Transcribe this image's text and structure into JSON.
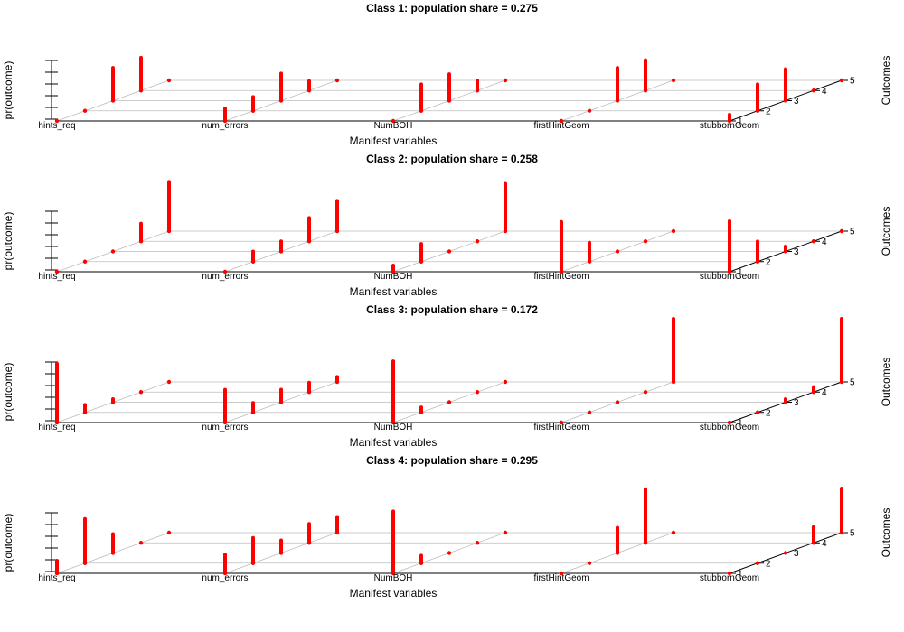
{
  "chart_data": [
    {
      "type": "3d-bar",
      "title": "Class 1: population share = 0.275",
      "xlabel": "Manifest variables",
      "ylabel": "pr(outcome)",
      "zlabel": "Outcomes",
      "variables": [
        "hints_req",
        "num_errors",
        "NumBOH",
        "firstHintGeom",
        "stubbornGeom"
      ],
      "outcomes": [
        "1",
        "2",
        "3",
        "4",
        "5"
      ],
      "ylim": [
        0,
        1
      ],
      "bar_color": "#ff0000",
      "values": [
        [
          0.0,
          0.0,
          0.52,
          0.52,
          0.0
        ],
        [
          0.2,
          0.22,
          0.43,
          0.15,
          0.0
        ],
        [
          0.0,
          0.42,
          0.42,
          0.16,
          0.0
        ],
        [
          0.0,
          0.0,
          0.52,
          0.48,
          0.0
        ],
        [
          0.1,
          0.42,
          0.5,
          0.0,
          0.0
        ]
      ]
    },
    {
      "type": "3d-bar",
      "title": "Class 2: population share = 0.258",
      "xlabel": "Manifest variables",
      "ylabel": "pr(outcome)",
      "zlabel": "Outcomes",
      "variables": [
        "hints_req",
        "num_errors",
        "NumBOH",
        "firstHintGeom",
        "stubbornGeom"
      ],
      "outcomes": [
        "1",
        "2",
        "3",
        "4",
        "5"
      ],
      "ylim": [
        0,
        1
      ],
      "bar_color": "#ff0000",
      "values": [
        [
          0.0,
          0.0,
          0.0,
          0.28,
          0.78
        ],
        [
          0.0,
          0.16,
          0.16,
          0.37,
          0.48
        ],
        [
          0.1,
          0.28,
          0.0,
          0.0,
          0.75
        ],
        [
          0.79,
          0.3,
          0.0,
          0.0,
          0.0
        ],
        [
          0.8,
          0.32,
          0.08,
          0.0,
          0.0
        ]
      ]
    },
    {
      "type": "3d-bar",
      "title": "Class 3: population share = 0.172",
      "xlabel": "Manifest variables",
      "ylabel": "pr(outcome)",
      "zlabel": "Outcomes",
      "variables": [
        "hints_req",
        "num_errors",
        "NumBOH",
        "firstHintGeom",
        "stubbornGeom"
      ],
      "outcomes": [
        "1",
        "2",
        "3",
        "4",
        "5"
      ],
      "ylim": [
        0,
        1
      ],
      "bar_color": "#ff0000",
      "values": [
        [
          0.93,
          0.12,
          0.05,
          0.0,
          0.0
        ],
        [
          0.52,
          0.15,
          0.2,
          0.15,
          0.08
        ],
        [
          0.97,
          0.08,
          0.0,
          0.0,
          0.0
        ],
        [
          0.0,
          0.0,
          0.0,
          0.0,
          1.0
        ],
        [
          0.0,
          0.0,
          0.05,
          0.08,
          1.0
        ]
      ]
    },
    {
      "type": "3d-bar",
      "title": "Class 4: population share = 0.295",
      "xlabel": "Manifest variables",
      "ylabel": "pr(outcome)",
      "zlabel": "Outcomes",
      "variables": [
        "hints_req",
        "num_errors",
        "NumBOH",
        "firstHintGeom",
        "stubbornGeom"
      ],
      "outcomes": [
        "1",
        "2",
        "3",
        "4",
        "5"
      ],
      "ylim": [
        0,
        1
      ],
      "bar_color": "#ff0000",
      "values": [
        [
          0.2,
          0.7,
          0.3,
          0.0,
          0.0
        ],
        [
          0.3,
          0.4,
          0.2,
          0.3,
          0.25
        ],
        [
          0.98,
          0.12,
          0.0,
          0.0,
          0.0
        ],
        [
          0.0,
          0.0,
          0.4,
          0.85,
          0.0
        ],
        [
          0.0,
          0.0,
          0.0,
          0.25,
          0.7
        ]
      ]
    }
  ]
}
